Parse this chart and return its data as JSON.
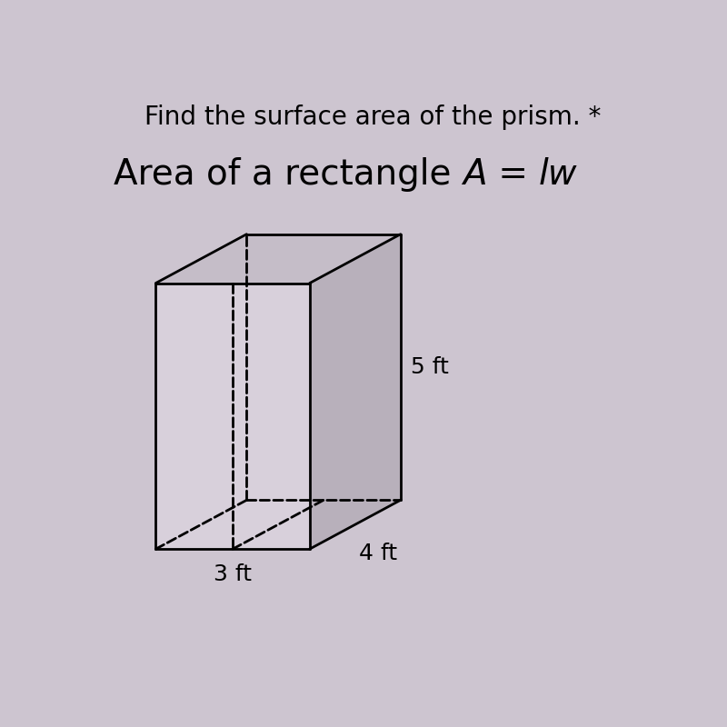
{
  "title": "Find the surface area of the prism. *",
  "subtitle_normal": "Area of a rectangle ",
  "subtitle_italic_A": "A",
  "subtitle_eq": " = ",
  "subtitle_italic_lw": "lw",
  "title_fontsize": 20,
  "subtitle_fontsize": 28,
  "bg_color": "#cdc5d0",
  "label_5ft": "5 ft",
  "label_4ft": "4 ft",
  "label_3ft": "3 ft",
  "label_fontsize": 18,
  "line_color": "#1a1a1a",
  "face_color_front": "#d8d0db",
  "face_color_top": "#c5bdc8",
  "face_color_right": "#b8b0bb",
  "line_width": 2.0
}
